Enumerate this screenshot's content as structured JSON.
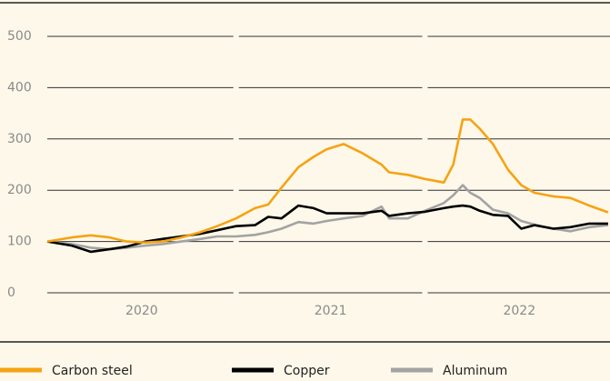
{
  "chart_data": {
    "type": "line",
    "x": [
      2020.0,
      2020.13,
      2020.23,
      2020.33,
      2020.42,
      2020.52,
      2020.61,
      2020.71,
      2020.81,
      2020.9,
      2021.0,
      2021.1,
      2021.17,
      2021.24,
      2021.33,
      2021.41,
      2021.48,
      2021.57,
      2021.67,
      2021.77,
      2021.81,
      2021.91,
      2022.0,
      2022.1,
      2022.15,
      2022.2,
      2022.24,
      2022.29,
      2022.36,
      2022.44,
      2022.51,
      2022.58,
      2022.68,
      2022.77,
      2022.87,
      2022.97
    ],
    "series": [
      {
        "name": "Carbon steel",
        "color": "#f5a313",
        "values": [
          100,
          108,
          112,
          108,
          100,
          98,
          100,
          108,
          118,
          130,
          145,
          165,
          172,
          205,
          245,
          265,
          280,
          290,
          272,
          250,
          235,
          230,
          222,
          215,
          250,
          338,
          338,
          320,
          290,
          240,
          210,
          195,
          188,
          185,
          170,
          157
        ]
      },
      {
        "name": "Copper",
        "color": "#000000",
        "values": [
          100,
          92,
          80,
          85,
          90,
          100,
          105,
          110,
          115,
          122,
          130,
          132,
          148,
          145,
          170,
          165,
          155,
          155,
          155,
          160,
          150,
          155,
          158,
          165,
          168,
          170,
          168,
          160,
          152,
          150,
          125,
          132,
          125,
          128,
          135,
          135
        ]
      },
      {
        "name": "Aluminum",
        "color": "#a3a3a3",
        "values": [
          100,
          95,
          88,
          85,
          88,
          92,
          95,
          100,
          105,
          110,
          110,
          113,
          118,
          125,
          138,
          135,
          140,
          145,
          150,
          168,
          145,
          145,
          160,
          175,
          190,
          210,
          195,
          185,
          162,
          155,
          140,
          133,
          125,
          120,
          128,
          132
        ]
      }
    ],
    "xlim": [
      2020,
      2022.98
    ],
    "xticks": [
      {
        "value": 2020.5,
        "label": "2020"
      },
      {
        "value": 2021.5,
        "label": "2021"
      },
      {
        "value": 2022.5,
        "label": "2022"
      }
    ],
    "ylim": [
      0,
      500
    ],
    "yticks": [
      0,
      100,
      200,
      300,
      400,
      500
    ],
    "grid": true,
    "legend": "bottom"
  }
}
